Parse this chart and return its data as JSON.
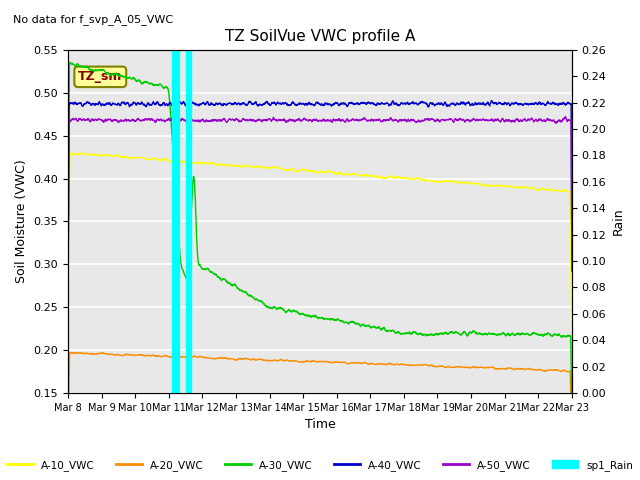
{
  "title": "TZ SoilVue VWC profile A",
  "subtitle": "No data for f_svp_A_05_VWC",
  "xlabel": "Time",
  "ylabel_left": "Soil Moisture (VWC)",
  "ylabel_right": "Rain",
  "ylim_left": [
    0.15,
    0.55
  ],
  "ylim_right": [
    0.0,
    0.26
  ],
  "yticks_left": [
    0.15,
    0.2,
    0.25,
    0.3,
    0.35,
    0.4,
    0.45,
    0.5,
    0.55
  ],
  "yticks_right": [
    0.0,
    0.02,
    0.04,
    0.06,
    0.08,
    0.1,
    0.12,
    0.14,
    0.16,
    0.18,
    0.2,
    0.22,
    0.24,
    0.26
  ],
  "date_start": 8,
  "date_end": 23,
  "rain_bar1": [
    3.1,
    3.3
  ],
  "rain_bar2": [
    3.5,
    3.65
  ],
  "rain_bar_color": "cyan",
  "legend_box_text": "TZ_sm",
  "legend_box_color": "#ffff99",
  "legend_box_text_color": "#880000",
  "colors": {
    "A-10_VWC": "#ffff00",
    "A-20_VWC": "#ff8c00",
    "A-30_VWC": "#00cc00",
    "A-40_VWC": "#0000cc",
    "A-50_VWC": "#9900cc",
    "sp1_Rain": "cyan"
  },
  "background_color": "#e8e8e8",
  "grid_color": "white"
}
